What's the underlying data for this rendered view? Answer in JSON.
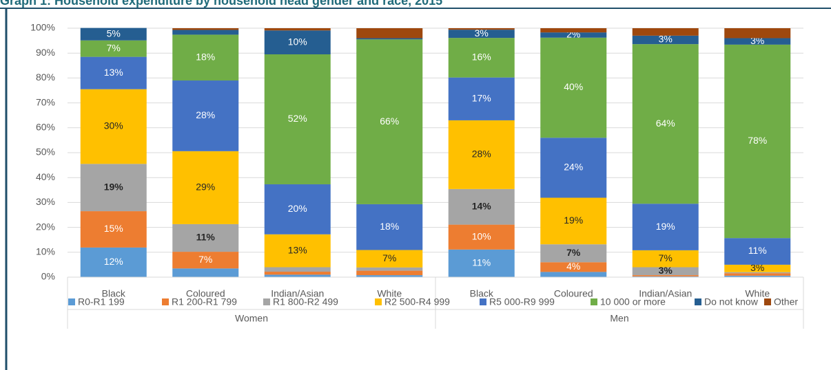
{
  "chart_data": {
    "type": "stacked_bar",
    "title": "Graph 1: Household expenditure by household head gender and race, 2015",
    "categories": [
      "Black",
      "Coloured",
      "Indian/Asian",
      "White",
      "Black",
      "Coloured",
      "Indian/Asian",
      "White"
    ],
    "groups": [
      "Women",
      "Men"
    ],
    "ylim": [
      0,
      100
    ],
    "yticks": [
      {
        "value": 0,
        "label": "0%"
      },
      {
        "value": 10,
        "label": "10%"
      },
      {
        "value": 20,
        "label": "20%"
      },
      {
        "value": 30,
        "label": "30%"
      },
      {
        "value": 40,
        "label": "40%"
      },
      {
        "value": 50,
        "label": "50%"
      },
      {
        "value": 60,
        "label": "60%"
      },
      {
        "value": 70,
        "label": "70%"
      },
      {
        "value": 80,
        "label": "80%"
      },
      {
        "value": 90,
        "label": "90%"
      },
      {
        "value": 100,
        "label": "100%"
      }
    ],
    "grid": true,
    "legend": "bottom",
    "series": [
      {
        "name": "R0-R1 199",
        "color": "#5b9bd5",
        "values": [
          11.9,
          3.5,
          1.0,
          0.8,
          11.1,
          2.1,
          0.3,
          0.6
        ],
        "value_labels": [
          "12%",
          null,
          null,
          null,
          "11%",
          null,
          null,
          null
        ]
      },
      {
        "name": "R1 200-R1 799",
        "color": "#ed7d31",
        "values": [
          14.6,
          6.7,
          1.2,
          1.8,
          10.0,
          3.9,
          0.5,
          1.0
        ],
        "value_labels": [
          "15%",
          "7%",
          null,
          null,
          "10%",
          "4%",
          null,
          null
        ]
      },
      {
        "name": "R1 800-R2 499",
        "color": "#a5a5a5",
        "values": [
          19.0,
          11.1,
          1.8,
          1.3,
          14.3,
          7.2,
          3.2,
          0.4
        ],
        "value_labels": [
          "19%",
          "11%",
          null,
          null,
          "14%",
          "7%",
          "3%",
          null
        ]
      },
      {
        "name": "R2 500-R4 999",
        "color": "#ffc000",
        "values": [
          30.0,
          29.3,
          13.2,
          7.0,
          27.6,
          18.7,
          6.8,
          3.0
        ],
        "value_labels": [
          "30%",
          "29%",
          "13%",
          "7%",
          "28%",
          "19%",
          "7%",
          "3%"
        ]
      },
      {
        "name": "R5 000-R9 999",
        "color": "#4472c4",
        "values": [
          13.0,
          28.4,
          20.1,
          18.4,
          17.2,
          24.1,
          18.7,
          10.7
        ],
        "value_labels": [
          "13%",
          "28%",
          "20%",
          "18%",
          "17%",
          "24%",
          "19%",
          "11%"
        ]
      },
      {
        "name": "10 000 or more",
        "color": "#70ad47",
        "values": [
          6.6,
          18.4,
          52.2,
          66.2,
          15.9,
          40.2,
          64.1,
          77.7
        ],
        "value_labels": [
          "7%",
          "18%",
          "52%",
          "66%",
          "16%",
          "40%",
          "64%",
          "78%"
        ]
      },
      {
        "name": "Do not know",
        "color": "#255e91",
        "values": [
          5.0,
          1.9,
          9.6,
          0.5,
          3.3,
          2.1,
          3.4,
          2.6
        ],
        "value_labels": [
          "5%",
          null,
          "10%",
          null,
          "3%",
          "2%",
          "3%",
          "3%"
        ]
      },
      {
        "name": "Other",
        "color": "#9e480e",
        "values": [
          0.0,
          0.7,
          0.9,
          4.0,
          0.6,
          1.7,
          3.0,
          4.0
        ],
        "value_labels": [
          null,
          null,
          null,
          null,
          null,
          null,
          null,
          null
        ]
      }
    ]
  }
}
